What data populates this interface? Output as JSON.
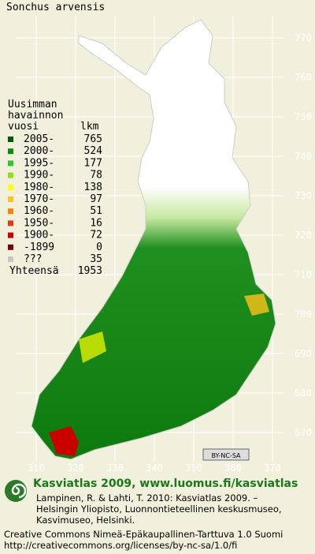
{
  "title": "Sonchus arvensis",
  "legend": {
    "heading": [
      "Uusimman",
      "havainnon",
      "vuosi"
    ],
    "count_heading": "lkm",
    "items": [
      {
        "label": "2005-",
        "count": 765,
        "color": "#005a00"
      },
      {
        "label": "2000-",
        "count": 524,
        "color": "#0f8a0f"
      },
      {
        "label": "1995-",
        "count": 177,
        "color": "#33c633"
      },
      {
        "label": "1990-",
        "count": 78,
        "color": "#8ee01a"
      },
      {
        "label": "1980-",
        "count": 138,
        "color": "#ffff00"
      },
      {
        "label": "1970-",
        "count": 97,
        "color": "#ffc21a"
      },
      {
        "label": "1960-",
        "count": 51,
        "color": "#ff8000"
      },
      {
        "label": "1950-",
        "count": 16,
        "color": "#e03a10"
      },
      {
        "label": "1900-",
        "count": 72,
        "color": "#c80000"
      },
      {
        "label": "-1899",
        "count": 0,
        "color": "#7a0000"
      },
      {
        "label": "???",
        "count": 35,
        "color": "#c8c8c8"
      }
    ],
    "total_label": "Yhteensä",
    "total": 1953
  },
  "grid": {
    "northing": [
      770,
      760,
      750,
      740,
      730,
      720,
      710,
      700,
      690,
      680,
      670
    ],
    "easting": [
      310,
      320,
      330,
      340,
      350,
      360,
      370
    ]
  },
  "badge": "BY-NC-SA",
  "footer": {
    "title": "Kasviatlas 2009, www.luomus.fi/kasviatlas",
    "citation": [
      "Lampinen, R. & Lahti, T. 2010: Kasviatlas 2009. –",
      "Helsingin Yliopisto, Luonnontieteellinen keskusmuseo,",
      "Kasvimuseo, Helsinki."
    ],
    "license": [
      "Creative Commons Nimeä-Epäkaupallinen-Tarttuva 1.0 Suomi",
      "http://creativecommons.org/licenses/by-nc-sa/1.0/fi"
    ]
  }
}
